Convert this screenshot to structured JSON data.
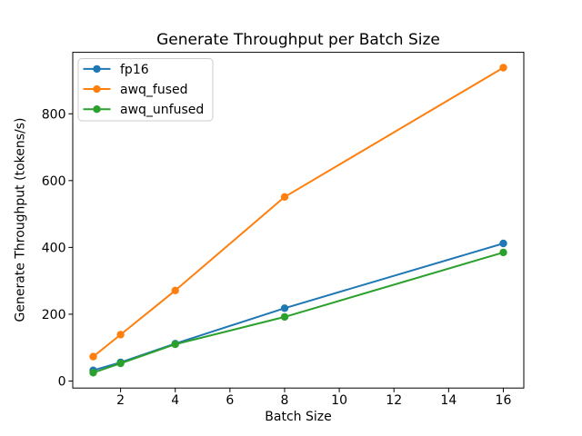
{
  "chart_data": {
    "type": "line",
    "title": "Generate Throughput per Batch Size",
    "xlabel": "Batch Size",
    "ylabel": "Generate Throughput (tokens/s)",
    "x": [
      1,
      2,
      4,
      8,
      16
    ],
    "series": [
      {
        "name": "fp16",
        "color": "#1f77b4",
        "values": [
          32,
          56,
          112,
          218,
          412
        ]
      },
      {
        "name": "awq_fused",
        "color": "#ff7f0e",
        "values": [
          73,
          139,
          271,
          551,
          938
        ]
      },
      {
        "name": "awq_unfused",
        "color": "#2ca02c",
        "values": [
          25,
          53,
          110,
          192,
          385
        ]
      }
    ],
    "xticks": [
      2,
      4,
      6,
      8,
      10,
      12,
      14,
      16
    ],
    "yticks": [
      0,
      200,
      400,
      600,
      800
    ],
    "xlim": [
      0.25,
      16.75
    ],
    "ylim": [
      -21,
      984
    ],
    "grid": false,
    "marker": "o",
    "legend": {
      "position": "upper left",
      "entries": [
        "fp16",
        "awq_fused",
        "awq_unfused"
      ]
    },
    "axis_color": "#000000",
    "legend_border_color": "#cccccc",
    "background": "#ffffff"
  }
}
